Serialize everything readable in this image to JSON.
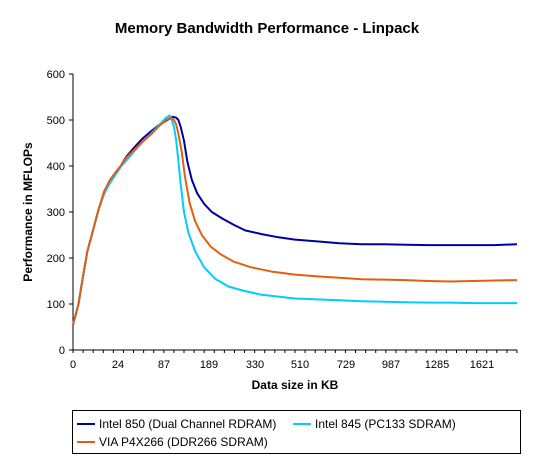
{
  "chart_data": {
    "type": "line",
    "title": "Memory Bandwidth Performance - Linpack",
    "xlabel": "Data size in KB",
    "ylabel": "Performance in MFLOPs",
    "x_ticks": [
      "0",
      "24",
      "87",
      "189",
      "330",
      "510",
      "729",
      "987",
      "1285",
      "1621"
    ],
    "ylim": [
      0,
      600
    ],
    "y_ticks": [
      0,
      100,
      200,
      300,
      400,
      500,
      600
    ],
    "grid": false,
    "legend_position": "bottom",
    "series": [
      {
        "name": "Intel 850 (Dual Channel RDRAM)",
        "color": "#0000A0",
        "points": [
          [
            0,
            55
          ],
          [
            5,
            100
          ],
          [
            9,
            160
          ],
          [
            13,
            215
          ],
          [
            18,
            260
          ],
          [
            23,
            305
          ],
          [
            28,
            340
          ],
          [
            33,
            368
          ],
          [
            38,
            385
          ],
          [
            43,
            400
          ],
          [
            48,
            420
          ],
          [
            55,
            440
          ],
          [
            62,
            458
          ],
          [
            70,
            475
          ],
          [
            78,
            490
          ],
          [
            85,
            500
          ],
          [
            90,
            507
          ],
          [
            93,
            505
          ],
          [
            95,
            500
          ],
          [
            97,
            485
          ],
          [
            100,
            455
          ],
          [
            103,
            410
          ],
          [
            107,
            370
          ],
          [
            112,
            340
          ],
          [
            118,
            318
          ],
          [
            125,
            300
          ],
          [
            135,
            285
          ],
          [
            145,
            272
          ],
          [
            155,
            260
          ],
          [
            170,
            252
          ],
          [
            185,
            245
          ],
          [
            200,
            240
          ],
          [
            220,
            236
          ],
          [
            240,
            232
          ],
          [
            260,
            230
          ],
          [
            280,
            230
          ],
          [
            300,
            229
          ],
          [
            320,
            228
          ],
          [
            340,
            228
          ],
          [
            360,
            228
          ],
          [
            380,
            228
          ],
          [
            400,
            230
          ]
        ]
      },
      {
        "name": "Intel 845 (PC133 SDRAM)",
        "color": "#00CCFF",
        "points": [
          [
            0,
            55
          ],
          [
            5,
            100
          ],
          [
            9,
            160
          ],
          [
            13,
            215
          ],
          [
            18,
            260
          ],
          [
            23,
            305
          ],
          [
            28,
            340
          ],
          [
            33,
            362
          ],
          [
            38,
            380
          ],
          [
            43,
            398
          ],
          [
            48,
            412
          ],
          [
            55,
            432
          ],
          [
            62,
            450
          ],
          [
            70,
            470
          ],
          [
            78,
            490
          ],
          [
            84,
            505
          ],
          [
            87,
            510
          ],
          [
            89,
            500
          ],
          [
            91,
            485
          ],
          [
            93,
            455
          ],
          [
            95,
            410
          ],
          [
            97,
            360
          ],
          [
            100,
            300
          ],
          [
            104,
            255
          ],
          [
            110,
            215
          ],
          [
            118,
            180
          ],
          [
            128,
            155
          ],
          [
            140,
            138
          ],
          [
            155,
            128
          ],
          [
            170,
            120
          ],
          [
            185,
            116
          ],
          [
            200,
            112
          ],
          [
            220,
            110
          ],
          [
            240,
            108
          ],
          [
            260,
            106
          ],
          [
            280,
            105
          ],
          [
            300,
            104
          ],
          [
            320,
            103
          ],
          [
            340,
            103
          ],
          [
            360,
            102
          ],
          [
            380,
            102
          ],
          [
            400,
            102
          ]
        ]
      },
      {
        "name": "VIA P4X266 (DDR266 SDRAM)",
        "color": "#E06010",
        "points": [
          [
            0,
            55
          ],
          [
            5,
            100
          ],
          [
            9,
            160
          ],
          [
            13,
            215
          ],
          [
            18,
            260
          ],
          [
            23,
            305
          ],
          [
            28,
            345
          ],
          [
            33,
            368
          ],
          [
            38,
            385
          ],
          [
            43,
            400
          ],
          [
            48,
            418
          ],
          [
            55,
            435
          ],
          [
            62,
            452
          ],
          [
            70,
            468
          ],
          [
            78,
            488
          ],
          [
            84,
            500
          ],
          [
            88,
            505
          ],
          [
            91,
            500
          ],
          [
            93,
            490
          ],
          [
            95,
            470
          ],
          [
            98,
            430
          ],
          [
            101,
            375
          ],
          [
            105,
            320
          ],
          [
            110,
            280
          ],
          [
            116,
            250
          ],
          [
            124,
            225
          ],
          [
            133,
            208
          ],
          [
            145,
            192
          ],
          [
            160,
            180
          ],
          [
            180,
            170
          ],
          [
            200,
            164
          ],
          [
            220,
            160
          ],
          [
            240,
            157
          ],
          [
            260,
            154
          ],
          [
            280,
            153
          ],
          [
            300,
            152
          ],
          [
            320,
            150
          ],
          [
            340,
            149
          ],
          [
            360,
            150
          ],
          [
            380,
            151
          ],
          [
            400,
            152
          ]
        ]
      }
    ]
  }
}
